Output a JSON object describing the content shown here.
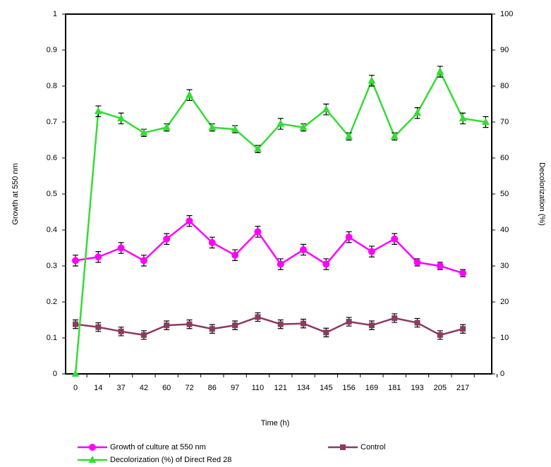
{
  "chart_data": {
    "type": "line",
    "x_label": "Time (h)",
    "y_label": "Growth at 550 nm",
    "y2_label": "Decolorization (%)",
    "categories": [
      "0",
      "14",
      "37",
      "42",
      "60",
      "72",
      "86",
      "97",
      "110",
      "121",
      "134",
      "145",
      "156",
      "169",
      "181",
      "193",
      "205",
      "217",
      null
    ],
    "ylim": [
      0,
      1
    ],
    "yticks": [
      0,
      0.1,
      0.2,
      0.3,
      0.4,
      0.5,
      0.6,
      0.7,
      0.8,
      0.9,
      1
    ],
    "y2lim": [
      0,
      100
    ],
    "y2ticks": [
      0,
      10,
      20,
      30,
      40,
      50,
      60,
      70,
      80,
      90,
      100
    ],
    "legend": "bottom",
    "series": [
      {
        "name": "Growth of culture at 550 nm",
        "color": "#ff00ff",
        "marker": "circle",
        "values": [
          0.315,
          0.325,
          0.35,
          0.315,
          0.375,
          0.425,
          0.365,
          0.33,
          0.395,
          0.305,
          0.345,
          0.305,
          0.38,
          0.34,
          0.375,
          0.31,
          0.3,
          0.28,
          null
        ],
        "errors": [
          0.015,
          0.015,
          0.015,
          0.015,
          0.015,
          0.015,
          0.015,
          0.015,
          0.015,
          0.015,
          0.015,
          0.015,
          0.015,
          0.015,
          0.015,
          0.01,
          0.01,
          0.01,
          null
        ]
      },
      {
        "name": "Control",
        "color": "#8b3a62",
        "marker": "square",
        "values": [
          0.138,
          0.13,
          0.118,
          0.108,
          0.135,
          0.138,
          0.125,
          0.135,
          0.158,
          0.138,
          0.14,
          0.115,
          0.145,
          0.135,
          0.155,
          0.142,
          0.108,
          0.125,
          null
        ],
        "errors": [
          0.012,
          0.012,
          0.012,
          0.012,
          0.012,
          0.012,
          0.012,
          0.012,
          0.012,
          0.012,
          0.012,
          0.012,
          0.012,
          0.012,
          0.012,
          0.012,
          0.012,
          0.012,
          null
        ]
      },
      {
        "name": "Decolorization (%) of Direct Red 28",
        "color": "#33dd33",
        "marker": "triangle",
        "axis": "y2",
        "values": [
          0,
          73,
          71,
          67,
          68.5,
          77.5,
          68.5,
          68,
          62.5,
          69.5,
          68.5,
          73.5,
          66,
          81.5,
          66,
          72.5,
          84,
          71,
          70
        ],
        "errors": [
          0,
          1.5,
          1.5,
          1,
          1,
          1.5,
          1,
          1,
          1,
          1.5,
          1,
          1.5,
          1,
          1.5,
          1,
          1.5,
          1.5,
          1.5,
          1.5
        ]
      }
    ]
  }
}
